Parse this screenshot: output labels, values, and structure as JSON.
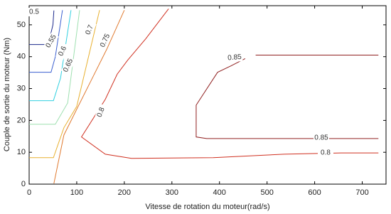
{
  "chart_data": {
    "type": "contour",
    "x_label": "Vitesse de rotation du moteur(rad/s)",
    "y_label": "Couple de sortie du moteur (Nm)",
    "xlim": [
      0,
      750
    ],
    "ylim": [
      0,
      56
    ],
    "xticks": [
      0,
      100,
      200,
      300,
      400,
      500,
      600,
      700
    ],
    "yticks": [
      0,
      10,
      20,
      30,
      40,
      50
    ],
    "series": [
      {
        "name": "0.5",
        "color": "#1c2a8c",
        "x": [
          0,
          40,
          50,
          52
        ],
        "y": [
          43.8,
          43.8,
          50,
          54.5
        ]
      },
      {
        "name": "0.55",
        "color": "#3a5fd0",
        "x": [
          0,
          46,
          55,
          70
        ],
        "y": [
          35.1,
          35.1,
          40,
          54.6
        ]
      },
      {
        "name": "0.6",
        "color": "#30d0e0",
        "x": [
          0,
          51,
          66,
          88
        ],
        "y": [
          26.2,
          26.2,
          33.3,
          54.6
        ]
      },
      {
        "name": "0.65",
        "color": "#9ee0b0",
        "x": [
          0,
          55,
          81,
          106
        ],
        "y": [
          18.8,
          18.8,
          25.5,
          54.6
        ]
      },
      {
        "name": "0.7",
        "color": "#e8b030",
        "x": [
          0,
          51,
          73,
          100,
          148
        ],
        "y": [
          8.3,
          8.3,
          17.7,
          24.4,
          54.6
        ]
      },
      {
        "name": "0.75",
        "color": "#e07a30",
        "x": [
          52,
          73,
          103,
          163,
          200
        ],
        "y": [
          0.2,
          15.4,
          24.4,
          42.3,
          54.6
        ]
      },
      {
        "name": "0.8",
        "color": "#d03020",
        "x": [
          293,
          245,
          207,
          185,
          160,
          110,
          160,
          215,
          387,
          536,
          655,
          734
        ],
        "y": [
          55,
          45.6,
          38.9,
          34.5,
          26.6,
          14.8,
          9.4,
          8.1,
          8.3,
          9.4,
          9.8,
          9.8
        ]
      },
      {
        "name": "0.85",
        "color": "#902020",
        "x": [
          454,
          424,
          396,
          351,
          351,
          373,
          734,
          null,
          476,
          734
        ],
        "y": [
          39.4,
          37.1,
          35.1,
          24.8,
          14.8,
          14.3,
          14.3,
          null,
          40.5,
          40.5
        ]
      }
    ]
  }
}
